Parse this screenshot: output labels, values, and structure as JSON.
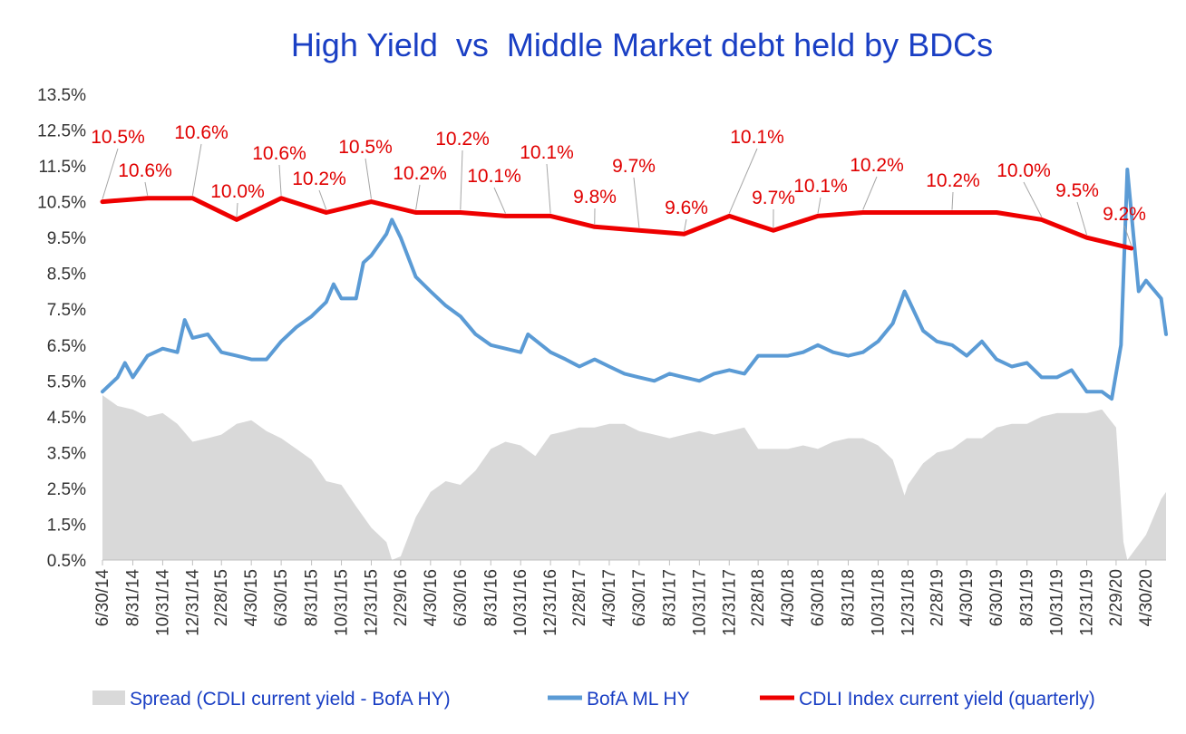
{
  "chart_data": {
    "type": "line",
    "title": "High Yield  vs  Middle Market debt held by BDCs",
    "xlabel": "",
    "ylabel": "",
    "ylim": [
      0.5,
      13.5
    ],
    "y_ticks": [
      "13.5%",
      "12.5%",
      "11.5%",
      "10.5%",
      "9.5%",
      "8.5%",
      "7.5%",
      "6.5%",
      "5.5%",
      "4.5%",
      "3.5%",
      "2.5%",
      "1.5%",
      "0.5%"
    ],
    "x_ticks": [
      "6/30/14",
      "8/31/14",
      "10/31/14",
      "12/31/14",
      "2/28/15",
      "4/30/15",
      "6/30/15",
      "8/31/15",
      "10/31/15",
      "12/31/15",
      "2/29/16",
      "4/30/16",
      "6/30/16",
      "8/31/16",
      "10/31/16",
      "12/31/16",
      "2/28/17",
      "4/30/17",
      "6/30/17",
      "8/31/17",
      "10/31/17",
      "12/31/17",
      "2/28/18",
      "4/30/18",
      "6/30/18",
      "8/31/18",
      "10/31/18",
      "12/31/18",
      "2/28/19",
      "4/30/19",
      "6/30/19",
      "8/31/19",
      "10/31/19",
      "12/31/19",
      "2/29/20",
      "4/30/20"
    ],
    "grid": false,
    "legend_position": "bottom",
    "series": [
      {
        "name": "Spread (CDLI current yield - BofA HY)",
        "kind": "area",
        "color": "#d9d9d9",
        "points": [
          [
            "6/30/14",
            5.1
          ],
          [
            "7/31/14",
            4.8
          ],
          [
            "8/31/14",
            4.7
          ],
          [
            "9/30/14",
            4.5
          ],
          [
            "10/31/14",
            4.6
          ],
          [
            "11/30/14",
            4.3
          ],
          [
            "12/31/14",
            3.8
          ],
          [
            "1/31/15",
            3.9
          ],
          [
            "2/28/15",
            4.0
          ],
          [
            "3/31/15",
            4.3
          ],
          [
            "4/30/15",
            4.4
          ],
          [
            "5/31/15",
            4.1
          ],
          [
            "6/30/15",
            3.9
          ],
          [
            "7/31/15",
            3.6
          ],
          [
            "8/31/15",
            3.3
          ],
          [
            "9/30/15",
            2.7
          ],
          [
            "10/31/15",
            2.6
          ],
          [
            "11/30/15",
            2.0
          ],
          [
            "12/31/15",
            1.4
          ],
          [
            "1/31/16",
            1.0
          ],
          [
            "2/11/16",
            0.5
          ],
          [
            "2/29/16",
            0.6
          ],
          [
            "3/31/16",
            1.7
          ],
          [
            "4/30/16",
            2.4
          ],
          [
            "5/31/16",
            2.7
          ],
          [
            "6/30/16",
            2.6
          ],
          [
            "7/31/16",
            3.0
          ],
          [
            "8/31/16",
            3.6
          ],
          [
            "9/30/16",
            3.8
          ],
          [
            "10/31/16",
            3.7
          ],
          [
            "11/30/16",
            3.4
          ],
          [
            "12/31/16",
            4.0
          ],
          [
            "1/31/17",
            4.1
          ],
          [
            "2/28/17",
            4.2
          ],
          [
            "3/31/17",
            4.2
          ],
          [
            "4/30/17",
            4.3
          ],
          [
            "5/31/17",
            4.3
          ],
          [
            "6/30/17",
            4.1
          ],
          [
            "7/31/17",
            4.0
          ],
          [
            "8/31/17",
            3.9
          ],
          [
            "9/30/17",
            4.0
          ],
          [
            "10/31/17",
            4.1
          ],
          [
            "11/30/17",
            4.0
          ],
          [
            "12/31/17",
            4.1
          ],
          [
            "1/31/18",
            4.2
          ],
          [
            "2/28/18",
            3.6
          ],
          [
            "3/31/18",
            3.6
          ],
          [
            "4/30/18",
            3.6
          ],
          [
            "5/31/18",
            3.7
          ],
          [
            "6/30/18",
            3.6
          ],
          [
            "7/31/18",
            3.8
          ],
          [
            "8/31/18",
            3.9
          ],
          [
            "9/30/18",
            3.9
          ],
          [
            "10/31/18",
            3.7
          ],
          [
            "11/30/18",
            3.3
          ],
          [
            "12/24/18",
            2.3
          ],
          [
            "12/31/18",
            2.6
          ],
          [
            "1/31/19",
            3.2
          ],
          [
            "2/28/19",
            3.5
          ],
          [
            "3/31/19",
            3.6
          ],
          [
            "4/30/19",
            3.9
          ],
          [
            "5/31/19",
            3.9
          ],
          [
            "6/30/19",
            4.2
          ],
          [
            "7/31/19",
            4.3
          ],
          [
            "8/31/19",
            4.3
          ],
          [
            "9/30/19",
            4.5
          ],
          [
            "10/31/19",
            4.6
          ],
          [
            "11/30/19",
            4.6
          ],
          [
            "12/31/19",
            4.6
          ],
          [
            "1/31/20",
            4.7
          ],
          [
            "2/29/20",
            4.2
          ],
          [
            "3/15/20",
            1.0
          ],
          [
            "3/23/20",
            0.5
          ],
          [
            "4/30/20",
            1.2
          ],
          [
            "5/31/20",
            2.2
          ],
          [
            "6/10/20",
            2.4
          ]
        ]
      },
      {
        "name": "BofA ML HY",
        "kind": "line",
        "color": "#5b9bd5",
        "points": [
          [
            "6/30/14",
            5.2
          ],
          [
            "7/31/14",
            5.6
          ],
          [
            "8/15/14",
            6.0
          ],
          [
            "8/31/14",
            5.6
          ],
          [
            "9/30/14",
            6.2
          ],
          [
            "10/31/14",
            6.4
          ],
          [
            "11/30/14",
            6.3
          ],
          [
            "12/15/14",
            7.2
          ],
          [
            "12/31/14",
            6.7
          ],
          [
            "1/31/15",
            6.8
          ],
          [
            "2/28/15",
            6.3
          ],
          [
            "3/31/15",
            6.2
          ],
          [
            "4/30/15",
            6.1
          ],
          [
            "5/31/15",
            6.1
          ],
          [
            "6/30/15",
            6.6
          ],
          [
            "7/31/15",
            7.0
          ],
          [
            "8/31/15",
            7.3
          ],
          [
            "9/30/15",
            7.7
          ],
          [
            "10/15/15",
            8.2
          ],
          [
            "10/31/15",
            7.8
          ],
          [
            "11/30/15",
            7.8
          ],
          [
            "12/15/15",
            8.8
          ],
          [
            "12/31/15",
            9.0
          ],
          [
            "1/31/16",
            9.6
          ],
          [
            "2/11/16",
            10.0
          ],
          [
            "2/29/16",
            9.5
          ],
          [
            "3/31/16",
            8.4
          ],
          [
            "4/30/16",
            8.0
          ],
          [
            "5/31/16",
            7.6
          ],
          [
            "6/30/16",
            7.3
          ],
          [
            "7/31/16",
            6.8
          ],
          [
            "8/31/16",
            6.5
          ],
          [
            "9/30/16",
            6.4
          ],
          [
            "10/31/16",
            6.3
          ],
          [
            "11/15/16",
            6.8
          ],
          [
            "12/31/16",
            6.3
          ],
          [
            "1/31/17",
            6.1
          ],
          [
            "2/28/17",
            5.9
          ],
          [
            "3/31/17",
            6.1
          ],
          [
            "4/30/17",
            5.9
          ],
          [
            "5/31/17",
            5.7
          ],
          [
            "6/30/17",
            5.6
          ],
          [
            "7/31/17",
            5.5
          ],
          [
            "8/31/17",
            5.7
          ],
          [
            "9/30/17",
            5.6
          ],
          [
            "10/31/17",
            5.5
          ],
          [
            "11/30/17",
            5.7
          ],
          [
            "12/31/17",
            5.8
          ],
          [
            "1/31/18",
            5.7
          ],
          [
            "2/28/18",
            6.2
          ],
          [
            "3/31/18",
            6.2
          ],
          [
            "4/30/18",
            6.2
          ],
          [
            "5/31/18",
            6.3
          ],
          [
            "6/30/18",
            6.5
          ],
          [
            "7/31/18",
            6.3
          ],
          [
            "8/31/18",
            6.2
          ],
          [
            "9/30/18",
            6.3
          ],
          [
            "10/31/18",
            6.6
          ],
          [
            "11/30/18",
            7.1
          ],
          [
            "12/24/18",
            8.0
          ],
          [
            "12/31/18",
            7.8
          ],
          [
            "1/31/19",
            6.9
          ],
          [
            "2/28/19",
            6.6
          ],
          [
            "3/31/19",
            6.5
          ],
          [
            "4/30/19",
            6.2
          ],
          [
            "5/31/19",
            6.6
          ],
          [
            "6/30/19",
            6.1
          ],
          [
            "7/31/19",
            5.9
          ],
          [
            "8/31/19",
            6.0
          ],
          [
            "9/30/19",
            5.6
          ],
          [
            "10/31/19",
            5.6
          ],
          [
            "11/30/19",
            5.8
          ],
          [
            "12/31/19",
            5.2
          ],
          [
            "1/31/20",
            5.2
          ],
          [
            "2/20/20",
            5.0
          ],
          [
            "3/10/20",
            6.5
          ],
          [
            "3/23/20",
            11.4
          ],
          [
            "4/15/20",
            8.0
          ],
          [
            "4/30/20",
            8.3
          ],
          [
            "5/31/20",
            7.8
          ],
          [
            "6/10/20",
            6.8
          ]
        ]
      },
      {
        "name": "CDLI Index current yield (quarterly)",
        "kind": "line",
        "color": "#ee0000",
        "points": [
          [
            "6/30/14",
            10.5
          ],
          [
            "9/30/14",
            10.6
          ],
          [
            "12/31/14",
            10.6
          ],
          [
            "3/31/15",
            10.0
          ],
          [
            "6/30/15",
            10.6
          ],
          [
            "9/30/15",
            10.2
          ],
          [
            "12/31/15",
            10.5
          ],
          [
            "3/31/16",
            10.2
          ],
          [
            "6/30/16",
            10.2
          ],
          [
            "9/30/16",
            10.1
          ],
          [
            "12/31/16",
            10.1
          ],
          [
            "3/31/17",
            9.8
          ],
          [
            "6/30/17",
            9.7
          ],
          [
            "9/30/17",
            9.6
          ],
          [
            "12/31/17",
            10.1
          ],
          [
            "3/31/18",
            9.7
          ],
          [
            "6/30/18",
            10.1
          ],
          [
            "9/30/18",
            10.2
          ],
          [
            "12/31/18",
            10.2
          ],
          [
            "3/31/19",
            10.2
          ],
          [
            "6/30/19",
            10.2
          ],
          [
            "9/30/19",
            10.0
          ],
          [
            "12/31/19",
            9.5
          ],
          [
            "3/31/20",
            9.2
          ]
        ]
      }
    ],
    "data_labels": [
      {
        "text": "10.5%",
        "date": "6/30/14"
      },
      {
        "text": "10.6%",
        "date": "9/30/14"
      },
      {
        "text": "10.6%",
        "date": "12/31/14"
      },
      {
        "text": "10.0%",
        "date": "3/31/15"
      },
      {
        "text": "10.6%",
        "date": "6/30/15"
      },
      {
        "text": "10.2%",
        "date": "9/30/15"
      },
      {
        "text": "10.5%",
        "date": "12/31/15"
      },
      {
        "text": "10.2%",
        "date": "3/31/16"
      },
      {
        "text": "10.2%",
        "date": "6/30/16"
      },
      {
        "text": "10.1%",
        "date": "9/30/16"
      },
      {
        "text": "10.1%",
        "date": "12/31/16"
      },
      {
        "text": "9.8%",
        "date": "3/31/17"
      },
      {
        "text": "9.7%",
        "date": "6/30/17"
      },
      {
        "text": "9.6%",
        "date": "9/30/17"
      },
      {
        "text": "10.1%",
        "date": "12/31/17"
      },
      {
        "text": "9.7%",
        "date": "3/31/18"
      },
      {
        "text": "10.1%",
        "date": "6/30/18"
      },
      {
        "text": "10.2%",
        "date": "9/30/18"
      },
      {
        "text": "10.2%",
        "date": "3/31/19"
      },
      {
        "text": "10.0%",
        "date": "9/30/19"
      },
      {
        "text": "9.5%",
        "date": "12/31/19"
      },
      {
        "text": "9.2%",
        "date": "3/31/20"
      }
    ]
  }
}
